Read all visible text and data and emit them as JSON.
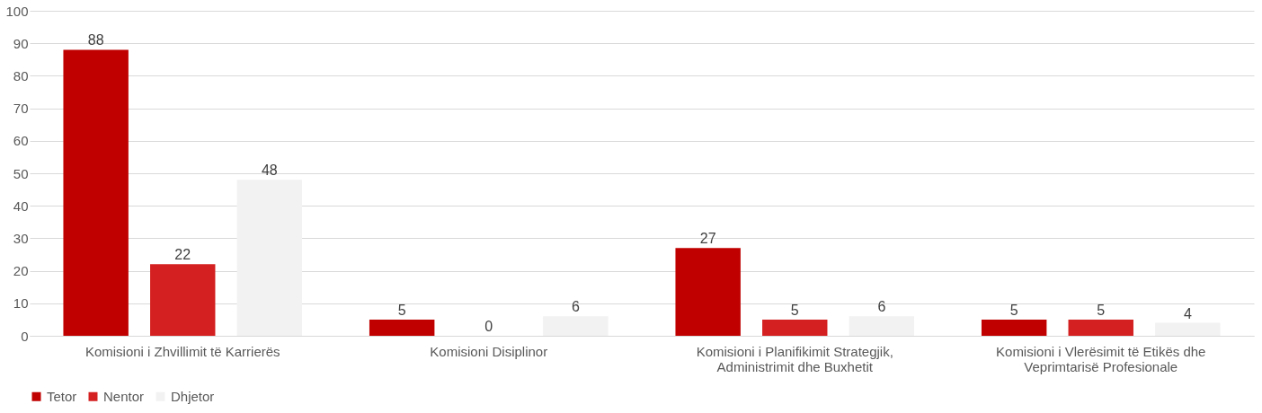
{
  "chart_data": {
    "type": "bar",
    "categories": [
      "Komisioni i Zhvillimit të Karrierës",
      "Komisioni Disiplinor",
      "Komisioni i Planifikimit Strategjik, Administrimit dhe Buxhetit",
      "Komisioni i Vlerësimit të Etikës dhe Veprimtarisë Profesionale"
    ],
    "series": [
      {
        "name": "Tetor",
        "color": "#c00000",
        "values": [
          88,
          5,
          27,
          5
        ]
      },
      {
        "name": "Nentor",
        "color": "#d42020",
        "values": [
          22,
          0,
          5,
          5
        ]
      },
      {
        "name": "Dhjetor",
        "color": "#f2f2f2",
        "values": [
          48,
          6,
          6,
          4
        ]
      }
    ],
    "ylim": [
      0,
      100
    ],
    "yticks": [
      0,
      10,
      20,
      30,
      40,
      50,
      60,
      70,
      80,
      90,
      100
    ],
    "grid": "y",
    "legend": "bottom",
    "data_labels": true
  }
}
